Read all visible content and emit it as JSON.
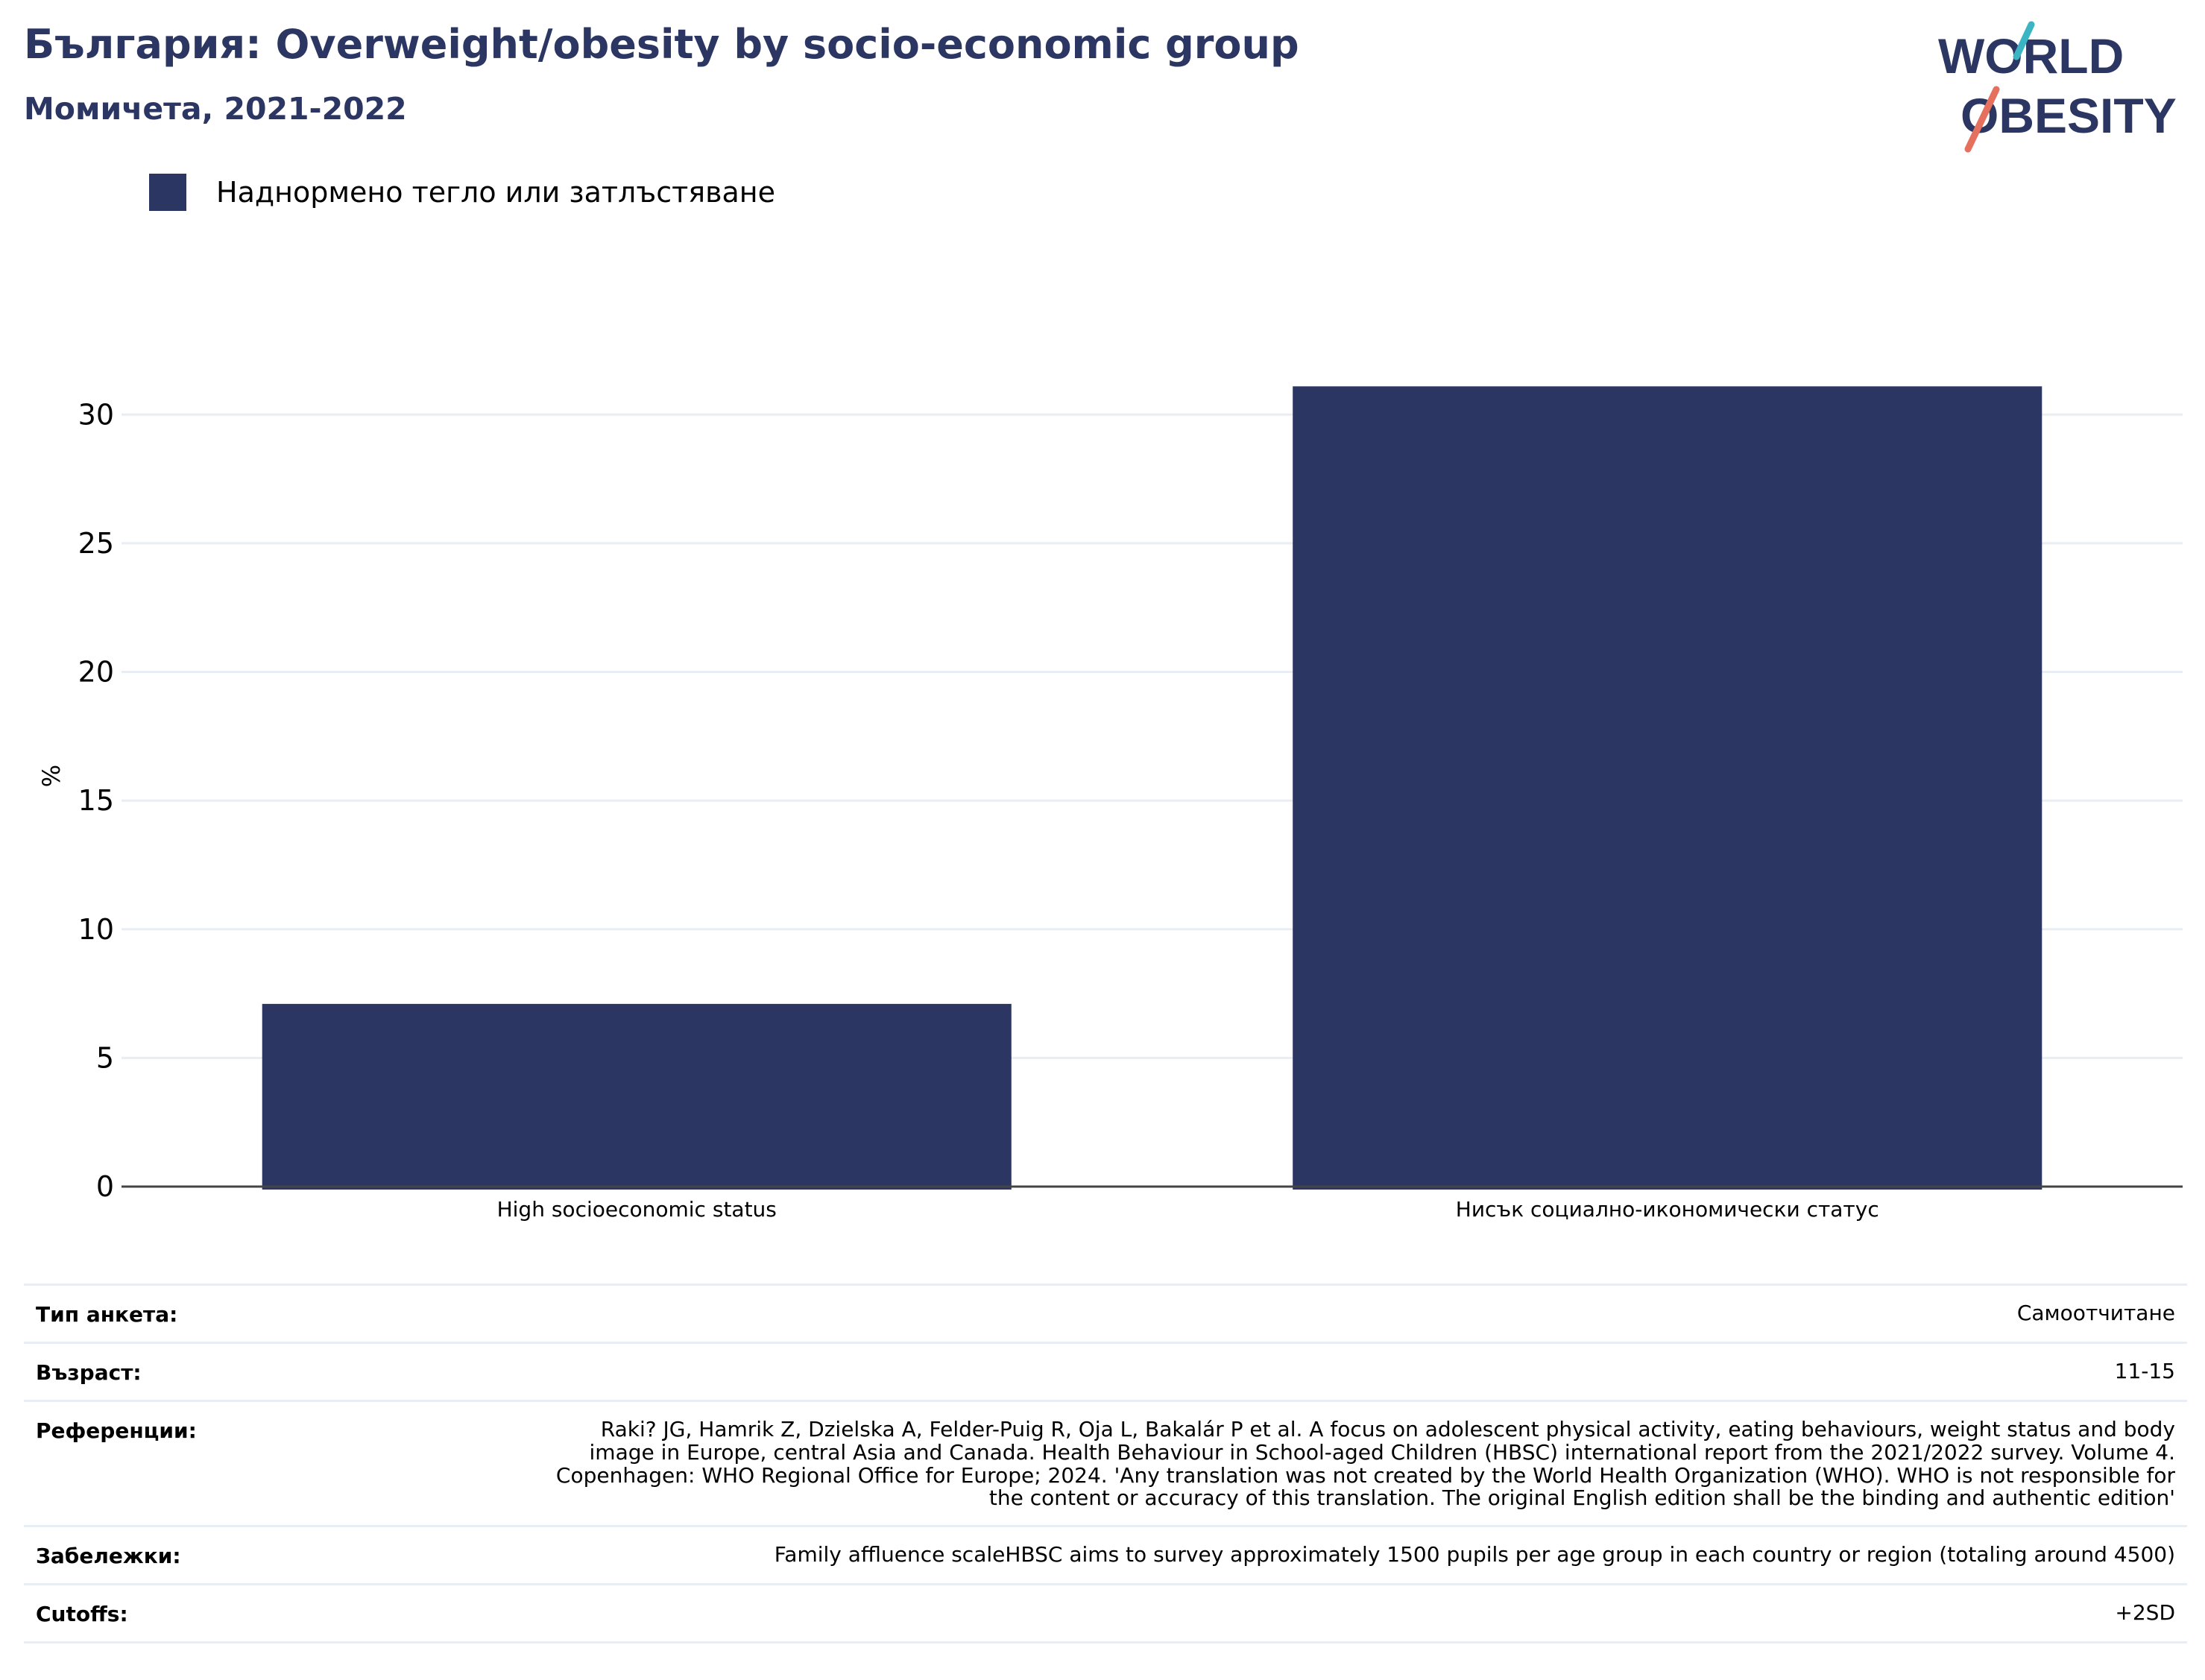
{
  "header": {
    "title": "България: Overweight/obesity by socio-economic group",
    "subtitle": "Момичета, 2021-2022"
  },
  "logo": {
    "line1": "WORLD",
    "line2": "OBESITY"
  },
  "colors": {
    "bar": "#2b3663",
    "text": "#2b3663",
    "grid": "#e8eef3",
    "logo_teal": "#3bb5c3",
    "logo_red": "#e4705d"
  },
  "legend": {
    "label": "Наднормено тегло или затлъстяване"
  },
  "chart_data": {
    "type": "bar",
    "categories": [
      "High socioeconomic status",
      "Нисък социално-икономически статус"
    ],
    "series": [
      {
        "name": "Наднормено тегло или затлъстяване",
        "values": [
          7.1,
          31.1
        ]
      }
    ],
    "ylabel": "%",
    "xlabel": "",
    "ylim": [
      0,
      32.5
    ],
    "yticks": [
      0,
      5,
      10,
      15,
      20,
      25,
      30
    ],
    "grid": true,
    "legend_position": "top-left"
  },
  "info": [
    {
      "label": "Тип анкета:",
      "value": "Самоотчитане"
    },
    {
      "label": "Възраст:",
      "value": "11-15"
    },
    {
      "label": "Референции:",
      "value": "Raki? JG, Hamrik Z, Dzielska A, Felder-Puig R, Oja L, Bakalár P et al. A focus on adolescent physical activity, eating behaviours, weight status and body image in Europe, central Asia and Canada. Health Behaviour in School-aged Children (HBSC) international report from the 2021/2022 survey. Volume 4. Copenhagen: WHO Regional Office for Europe; 2024. 'Any translation was not created by the World Health Organization (WHO). WHO is not responsible for the content or accuracy of this translation. The original English edition shall be the binding and authentic edition'"
    },
    {
      "label": "Забележки:",
      "value": "Family affluence scaleHBSC aims to survey approximately 1500 pupils per age group in each country or region (totaling around 4500)"
    },
    {
      "label": "Cutoffs:",
      "value": "+2SD"
    }
  ]
}
